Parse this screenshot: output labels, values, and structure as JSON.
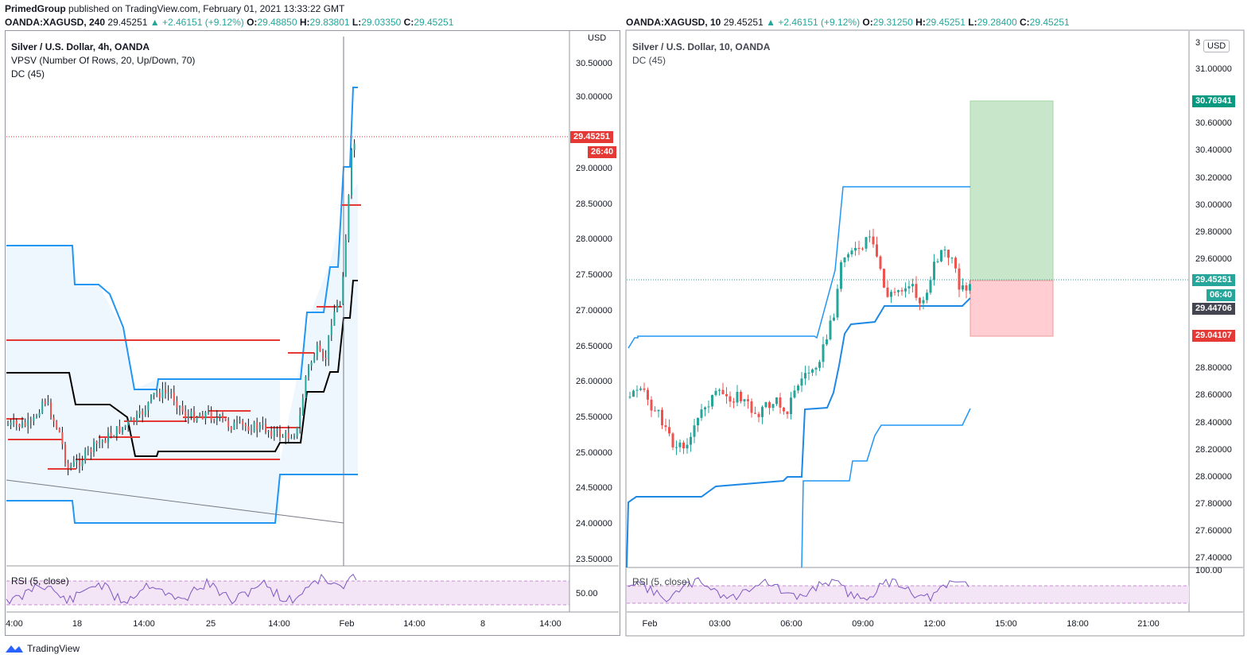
{
  "header": {
    "author": "PrimedGroup",
    "published": "published on TradingView.com, February 01, 2021 13:33:22 GMT"
  },
  "left": {
    "symbol": "OANDA:XAGUSD, 240",
    "price": "29.45251",
    "change": "▲ +2.46151 (+9.12%)",
    "O": "29.48850",
    "H": "29.83801",
    "L": "29.03350",
    "C": "29.45251",
    "legend": [
      "Silver / U.S. Dollar, 4h, OANDA",
      "VPSV (Number Of Rows, 20, Up/Down, 70)",
      "DC (45)"
    ],
    "currency": "USD",
    "price_badge": "29.45251",
    "time_badge": "26:40",
    "rsi_label": "RSI (5, close)",
    "rsi_tick": "50.00",
    "y_ticks": [
      "30.50000",
      "30.00000",
      "29.00000",
      "28.50000",
      "28.00000",
      "27.50000",
      "27.00000",
      "26.50000",
      "26.00000",
      "25.50000",
      "25.00000",
      "24.50000",
      "24.00000",
      "23.50000"
    ],
    "x_ticks": [
      "4:00",
      "18",
      "14:00",
      "25",
      "14:00",
      "Feb",
      "14:00",
      "8",
      "14:00"
    ]
  },
  "right": {
    "symbol": "OANDA:XAGUSD, 10",
    "price": "29.45251",
    "change": "▲ +2.46151 (+9.12%)",
    "O": "29.31250",
    "H": "29.45251",
    "L": "29.28400",
    "C": "29.45251",
    "legend": [
      "Silver / U.S. Dollar, 10, OANDA",
      "DC (45)"
    ],
    "currency": "USD",
    "top_tick": "3",
    "y_ticks": [
      "31.00000",
      "30.60000",
      "30.40000",
      "30.20000",
      "30.00000",
      "29.80000",
      "29.60000",
      "28.80000",
      "28.60000",
      "28.40000",
      "28.20000",
      "28.00000",
      "27.80000",
      "27.60000",
      "27.40000"
    ],
    "rsi_tick": "100.00",
    "rsi_label": "RSI (5, close)",
    "badges": {
      "target": "30.76941",
      "price": "29.45251",
      "timer": "06:40",
      "entry": "29.44706",
      "stop": "29.04107"
    },
    "x_ticks": [
      "Feb",
      "03:00",
      "06:00",
      "09:00",
      "12:00",
      "15:00",
      "18:00",
      "21:00"
    ]
  },
  "colors": {
    "up": "#26a69a",
    "down": "#ef5350",
    "dc": "#2196f3",
    "target": "#c8e6c9",
    "stop": "#ffcdd2",
    "badge_red": "#e53935",
    "badge_green": "#089981"
  },
  "footer": {
    "brand": "TradingView"
  }
}
